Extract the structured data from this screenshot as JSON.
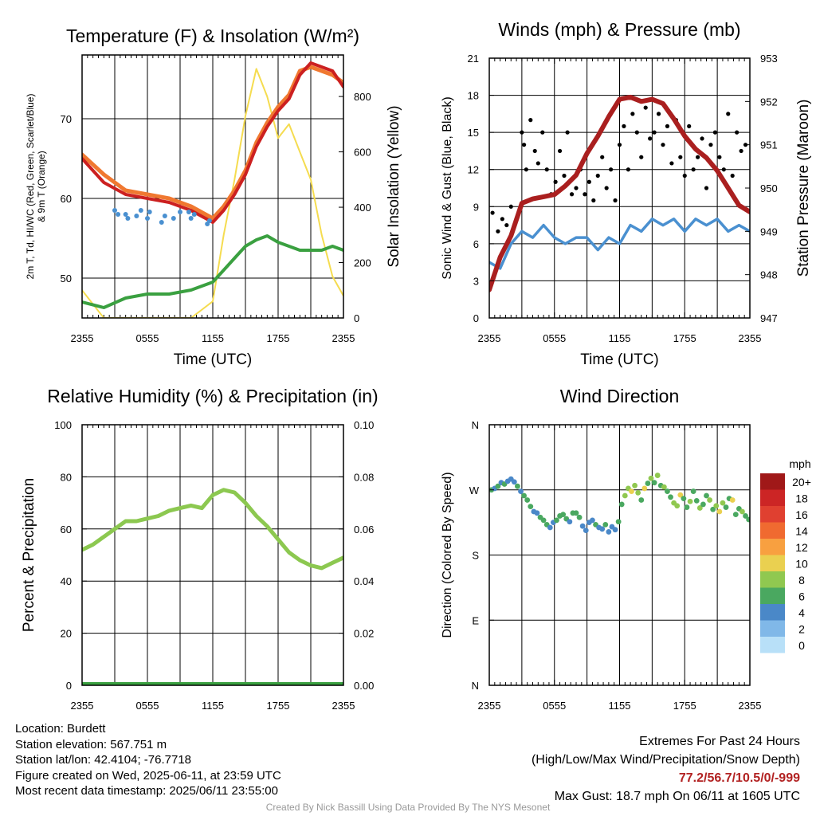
{
  "x_ticks": [
    "2355",
    "0555",
    "1155",
    "1755",
    "2355"
  ],
  "chart_data": [
    {
      "type": "line",
      "title": "Temperature (F) & Insolation (W/m²)",
      "xlabel": "Time (UTC)",
      "ylabel": "2m T, Td, HI/WC (Red, Green, Scarlet/Blue) & 9m T (Orange)",
      "ylabel2": "Solar Insolation (Yellow)",
      "ylim": [
        45,
        78
      ],
      "ylim2": [
        0,
        950
      ],
      "yticks": [
        50,
        60,
        70
      ],
      "yticks2": [
        0,
        200,
        400,
        600,
        800
      ],
      "x_hours": [
        0,
        2,
        4,
        6,
        8,
        10,
        12,
        13,
        14,
        15,
        16,
        17,
        18,
        19,
        20,
        21,
        22,
        23,
        24
      ],
      "series": [
        {
          "name": "2m T",
          "color": "#cc2020",
          "axis": "left",
          "values": [
            65,
            62,
            60.5,
            60,
            59.5,
            58.5,
            57,
            58.5,
            60.5,
            63,
            66.5,
            69,
            71,
            72.5,
            75.5,
            77,
            76.5,
            76,
            74
          ]
        },
        {
          "name": "9m T",
          "color": "#f07830",
          "axis": "left",
          "values": [
            65.5,
            63,
            61,
            60.5,
            60,
            59,
            57.5,
            59,
            61,
            63.5,
            67,
            69.5,
            71.5,
            73,
            76,
            76.5,
            76,
            75.5,
            74.5
          ]
        },
        {
          "name": "Td",
          "color": "#3aa040",
          "axis": "left",
          "values": [
            47,
            46.3,
            47.5,
            48,
            48,
            48.5,
            49.5,
            51,
            52.5,
            54,
            54.8,
            55.3,
            54.5,
            54,
            53.5,
            53.5,
            53.5,
            54,
            53.5
          ]
        },
        {
          "name": "Insolation",
          "color": "#f5dc50",
          "axis": "right",
          "values": [
            100,
            0,
            0,
            0,
            0,
            0,
            60,
            300,
            500,
            730,
            900,
            800,
            650,
            700,
            600,
            500,
            300,
            150,
            80
          ]
        }
      ],
      "wind_chill": {
        "name": "WC",
        "color": "#4a90d0",
        "x_hours": [
          3.0,
          3.3,
          4.0,
          4.2,
          5.0,
          5.4,
          6.0,
          6.2,
          7.3,
          7.6,
          8.4,
          9.0,
          9.8,
          10.0,
          10.3,
          11.5,
          11.7
        ],
        "values": [
          58.5,
          58.0,
          58.0,
          57.5,
          57.8,
          58.5,
          57.5,
          58.3,
          57.0,
          57.8,
          57.5,
          58.3,
          58.3,
          57.5,
          58.0,
          56.8,
          57.2
        ]
      }
    },
    {
      "type": "line",
      "title": "Winds (mph) & Pressure (mb)",
      "xlabel": "Time (UTC)",
      "ylabel": "Sonic Wind & Gust (Blue, Black)",
      "ylabel2": "Station Pressure (Maroon)",
      "ylim": [
        0,
        21
      ],
      "ylim2": [
        947,
        953
      ],
      "yticks": [
        0,
        3,
        6,
        9,
        12,
        15,
        18,
        21
      ],
      "yticks2": [
        947,
        948,
        949,
        950,
        951,
        952,
        953
      ],
      "x_hours": [
        0,
        1,
        2,
        3,
        4,
        5,
        6,
        7,
        8,
        9,
        10,
        11,
        12,
        13,
        14,
        15,
        16,
        17,
        18,
        19,
        20,
        21,
        22,
        23,
        24
      ],
      "series": [
        {
          "name": "Sonic Wind",
          "color": "#4a90d0",
          "axis": "left",
          "values": [
            4.5,
            4,
            6,
            7,
            6.5,
            7.5,
            6.5,
            6,
            6.5,
            6.5,
            5.5,
            6.5,
            6,
            7.5,
            7,
            8,
            7.5,
            8,
            7,
            8,
            7.5,
            8,
            7,
            7.5,
            7
          ]
        },
        {
          "name": "Pressure",
          "color": "#aa1f1f",
          "axis": "right",
          "values": [
            947.65,
            948.4,
            948.9,
            949.65,
            949.75,
            949.8,
            949.85,
            950.05,
            950.3,
            950.8,
            951.2,
            951.65,
            952.05,
            952.1,
            952.0,
            952.05,
            951.95,
            951.6,
            951.2,
            950.9,
            950.7,
            950.4,
            950.0,
            949.6,
            949.45
          ]
        }
      ],
      "gusts": {
        "name": "Gust",
        "color": "#000000",
        "x_hours": [
          0.3,
          0.8,
          1.2,
          1.6,
          2.0,
          2.5,
          3.0,
          3.2,
          3.4,
          3.8,
          4.2,
          4.5,
          4.9,
          5.3,
          5.7,
          6.1,
          6.5,
          6.9,
          7.2,
          7.6,
          8.0,
          8.4,
          8.8,
          9.2,
          9.6,
          10.0,
          10.4,
          10.8,
          11.2,
          11.6,
          12.0,
          12.4,
          12.8,
          13.2,
          13.6,
          14.0,
          14.4,
          14.8,
          15.2,
          15.6,
          16.0,
          16.4,
          16.8,
          17.2,
          17.6,
          18.0,
          18.4,
          18.8,
          19.2,
          19.6,
          20.0,
          20.4,
          20.8,
          21.2,
          21.6,
          22.0,
          22.4,
          22.8,
          23.2,
          23.6
        ],
        "values": [
          8.5,
          7,
          8,
          7.5,
          9,
          8,
          15,
          14,
          12,
          16,
          13.5,
          12.5,
          15,
          12,
          10,
          11,
          13.5,
          11.5,
          15,
          10,
          10.5,
          12,
          10,
          11,
          9.5,
          11.5,
          13,
          10.5,
          12,
          9.5,
          14,
          15.5,
          12,
          16.5,
          15,
          13,
          17,
          14.5,
          15,
          16.5,
          14,
          15.5,
          12.5,
          16,
          13,
          11.5,
          15.5,
          12,
          13,
          14.5,
          10.5,
          14,
          15,
          13,
          12,
          16.5,
          11.5,
          15,
          13.5,
          14
        ]
      }
    },
    {
      "type": "line",
      "title": "Relative Humidity (%) & Precipitation (in)",
      "xlabel": "",
      "ylabel": "Percent & Precipitation",
      "ylim": [
        0,
        100
      ],
      "ylim2": [
        0,
        0.1
      ],
      "yticks": [
        0,
        20,
        40,
        60,
        80,
        100
      ],
      "yticks2": [
        0.0,
        0.02,
        0.04,
        0.06,
        0.08,
        0.1
      ],
      "yticks2_labels": [
        "0.00",
        "0.02",
        "0.04",
        "0.06",
        "0.08",
        "0.10"
      ],
      "x_hours": [
        0,
        1,
        2,
        3,
        4,
        5,
        6,
        7,
        8,
        9,
        10,
        11,
        12,
        13,
        14,
        15,
        16,
        17,
        18,
        19,
        20,
        21,
        22,
        23,
        24
      ],
      "series": [
        {
          "name": "RH",
          "color": "#8cc850",
          "axis": "left",
          "values": [
            52,
            54,
            57,
            60,
            63,
            63,
            64,
            65,
            67,
            68,
            69,
            68,
            73,
            75,
            74,
            70,
            65,
            61,
            56,
            51,
            48,
            46,
            45,
            47,
            49
          ]
        },
        {
          "name": "Precip",
          "color": "#3aa040",
          "axis": "right",
          "values": [
            0,
            0,
            0,
            0,
            0,
            0,
            0,
            0,
            0,
            0,
            0,
            0,
            0,
            0,
            0,
            0,
            0,
            0,
            0,
            0,
            0,
            0,
            0,
            0,
            0
          ]
        }
      ]
    },
    {
      "type": "scatter",
      "title": "Wind Direction",
      "xlabel": "",
      "ylabel": "Direction (Colored By Speed)",
      "ylim": [
        0,
        360
      ],
      "yticks": [
        0,
        90,
        180,
        270,
        360
      ],
      "ytick_labels": [
        "N",
        "E",
        "S",
        "W",
        "N"
      ],
      "colorbar": {
        "title": "mph",
        "labels": [
          "20+",
          "18",
          "16",
          "14",
          "12",
          "10",
          "8",
          "6",
          "4",
          "2",
          "0"
        ],
        "colors": [
          "#a01818",
          "#cc2525",
          "#e04030",
          "#f06a30",
          "#f8a040",
          "#ead050",
          "#90c850",
          "#4aa860",
          "#4a88c8",
          "#80b8e8",
          "#b8e0f8"
        ]
      },
      "x_hours": [
        0.2,
        0.5,
        0.8,
        1.1,
        1.4,
        1.7,
        2.0,
        2.3,
        2.6,
        2.9,
        3.2,
        3.5,
        3.8,
        4.1,
        4.4,
        4.7,
        5.0,
        5.3,
        5.6,
        5.9,
        6.2,
        6.5,
        6.8,
        7.1,
        7.4,
        7.7,
        8.0,
        8.3,
        8.6,
        8.9,
        9.2,
        9.5,
        9.8,
        10.1,
        10.4,
        10.7,
        11.0,
        11.3,
        11.6,
        11.9,
        12.2,
        12.5,
        12.8,
        13.1,
        13.4,
        13.7,
        14.0,
        14.3,
        14.6,
        14.9,
        15.2,
        15.5,
        15.8,
        16.1,
        16.4,
        16.7,
        17.0,
        17.3,
        17.6,
        17.9,
        18.2,
        18.5,
        18.8,
        19.1,
        19.4,
        19.7,
        20.0,
        20.3,
        20.6,
        20.9,
        21.2,
        21.5,
        21.8,
        22.1,
        22.4,
        22.7,
        23.0,
        23.3,
        23.6,
        23.9
      ],
      "direction": [
        270,
        272,
        275,
        280,
        278,
        282,
        285,
        281,
        275,
        268,
        262,
        256,
        247,
        240,
        238,
        232,
        228,
        222,
        218,
        225,
        228,
        234,
        236,
        230,
        226,
        238,
        238,
        232,
        220,
        214,
        225,
        228,
        222,
        218,
        216,
        222,
        212,
        219,
        215,
        226,
        250,
        262,
        272,
        268,
        276,
        266,
        256,
        272,
        279,
        286,
        280,
        290,
        276,
        274,
        268,
        260,
        252,
        248,
        263,
        258,
        246,
        254,
        268,
        255,
        245,
        250,
        262,
        256,
        243,
        248,
        240,
        252,
        246,
        258,
        256,
        236,
        244,
        240,
        234,
        229
      ],
      "speed": [
        6,
        5,
        7,
        5,
        6,
        4,
        5,
        4,
        6,
        5,
        6,
        7,
        6,
        5,
        4,
        6,
        7,
        6,
        5,
        4,
        6,
        7,
        6,
        7,
        5,
        6,
        7,
        6,
        5,
        4,
        5,
        4,
        6,
        5,
        4,
        6,
        5,
        4,
        4,
        7,
        6,
        8,
        9,
        10,
        8,
        9,
        7,
        10,
        6,
        8,
        7,
        9,
        6,
        8,
        7,
        6,
        8,
        9,
        10,
        7,
        6,
        8,
        7,
        6,
        9,
        7,
        6,
        8,
        7,
        9,
        10,
        8,
        7,
        6,
        10,
        7,
        6,
        8,
        7,
        6
      ]
    }
  ],
  "info": {
    "location": "Location: Burdett",
    "elevation": "Station elevation: 567.751 m",
    "latlon": "Station lat/lon: 42.4104; -76.7718",
    "created": "Figure created on Wed, 2025-06-11, at 23:59 UTC",
    "recent": "Most recent data timestamp: 2025/06/11 23:55:00"
  },
  "extremes": {
    "title": "Extremes For Past 24 Hours",
    "subtitle": "(High/Low/Max Wind/Precipitation/Snow Depth)",
    "values": "77.2/56.7/10.5/0/-999",
    "gust": "Max Gust: 18.7 mph On 06/11 at 1605 UTC"
  },
  "credit": "Created By Nick Bassill Using Data Provided By The NYS Mesonet"
}
